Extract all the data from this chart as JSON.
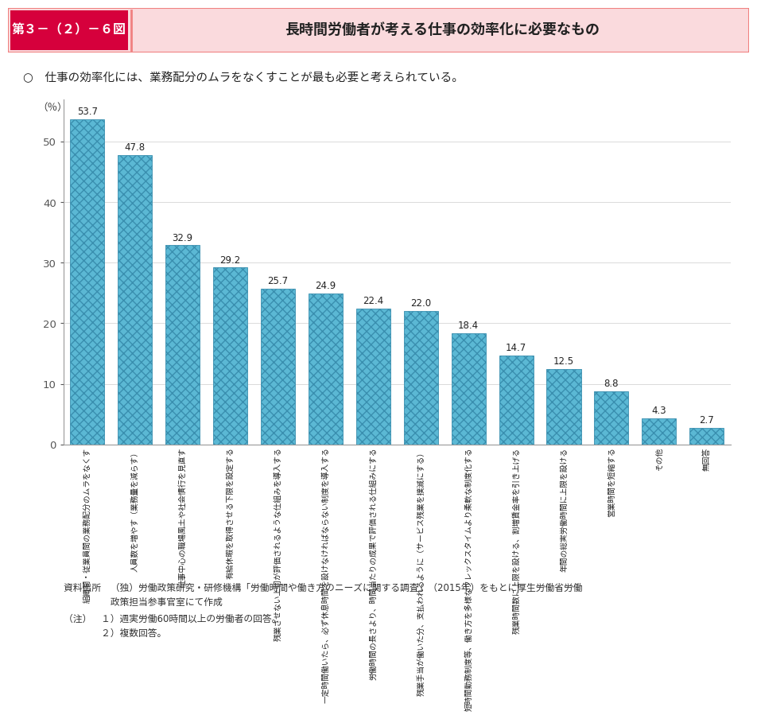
{
  "title_box_left": "第３－（２）－６図",
  "title_box_right": "長時間労働者が考える仕事の効率化に必要なもの",
  "subtitle": "○　仕事の効率化には、業務配分のムラをなくすことが最も必要と考えられている。",
  "ylabel": "（％）",
  "values": [
    53.7,
    47.8,
    32.9,
    29.2,
    25.7,
    24.9,
    22.4,
    22.0,
    18.4,
    14.7,
    12.5,
    8.8,
    4.3,
    2.7
  ],
  "categories": [
    "組織間・従業員間の業務配分のムラをなくす",
    "人員数を増やす（業務量を減らす）",
    "仕事中心の職場風土や社会慣行を見直す",
    "有給休暇を取得させる下限を設定する",
    "残業させない上司が評価されるような仕組みを導入する",
    "一定時間働いたら、必ず休息時間を設けなければならない制度を導入する",
    "労働時間の長さより、時間当たりの成果で評価される仕組みにする",
    "残業手当が働いた分、支払われるように（サービス残業を撲滅にする）",
    "短時間勤務制度等、働き方を多様なフレックスタイムより柔軟な制度化する",
    "残業時間数に上限を設ける、割増賃金率を引き上げる",
    "年間の総実労働時間に上限を設ける",
    "営業時間を短縮する",
    "その他",
    "無回答"
  ],
  "bar_color": "#5BB8D4",
  "bar_edge_color": "#3A8FAF",
  "source_text": "資料出所　（独）労働政策研究・研修機構「労働時間や働き方のニーズに関する調査」（2015年）をもとに厚生労働省労働\n　　　　　政策担当参事官室にて作成",
  "note_text": "（注）　１）週実労働60時間以上の労働者の回答。\n　　　　２）複数回答。",
  "ylim": [
    0,
    57
  ],
  "yticks": [
    0,
    10,
    20,
    30,
    40,
    50
  ],
  "title_left_bg": "#D6003C",
  "title_right_bg": "#FADADD",
  "title_border": "#F08080",
  "fig_bg_color": "#FFFFFF"
}
